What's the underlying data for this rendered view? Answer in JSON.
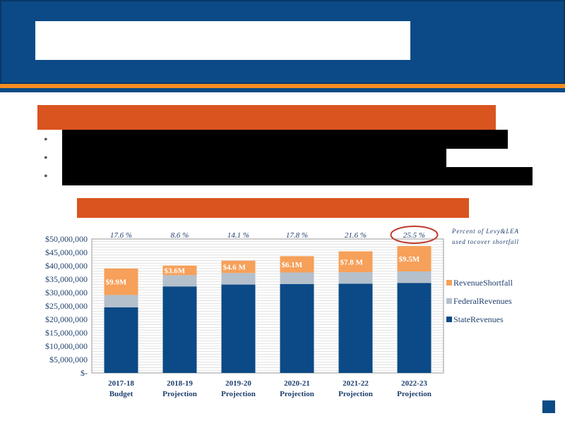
{
  "bullets": [
    "•",
    "•",
    "•"
  ],
  "colors": {
    "header": "#0b4a86",
    "stripe": "#f58c1e",
    "banner": "#d9541e",
    "state": "#0b4a86",
    "federal": "#b4c0cc",
    "shortfall": "#f6a05a",
    "highlight_circle": "#c0392b"
  },
  "chart_data": {
    "type": "bar",
    "stacked": true,
    "categories": [
      [
        "2017-18",
        "Budget"
      ],
      [
        "2018-19",
        "Projection"
      ],
      [
        "2019-20",
        "Projection"
      ],
      [
        "2020-21",
        "Projection"
      ],
      [
        "2021-22",
        "Projection"
      ],
      [
        "2022-23",
        "Projection"
      ]
    ],
    "series": [
      {
        "name": "StateRevenues",
        "values": [
          24500000,
          32300000,
          33000000,
          33200000,
          33300000,
          33600000
        ]
      },
      {
        "name": "FederalRevenues",
        "values": [
          4600000,
          4200000,
          4300000,
          4300000,
          4300000,
          4300000
        ]
      },
      {
        "name": "RevenueShortfall",
        "values": [
          9900000,
          3600000,
          4600000,
          6100000,
          7800000,
          9500000
        ]
      }
    ],
    "bar_labels": [
      "$9.9M",
      "$3.6M",
      "$4.6 M",
      "$6.1M",
      "$7.8 M",
      "$9.5M"
    ],
    "percent_labels": [
      "17.6 %",
      "8.6 %",
      "14.1 %",
      "17.8 %",
      "21.6 %",
      "25.5 %"
    ],
    "highlighted_index": 5,
    "y_ticks": [
      "$-",
      "$5,000,000",
      "$10,000,000",
      "$15,000,000",
      "$20,000,000",
      "$25,000,000",
      "$30,000,000",
      "$35,000,000",
      "$40,000,000",
      "$45,000,000",
      "$50,000,000"
    ],
    "ylim": [
      0,
      50000000
    ],
    "legend": [
      "RevenueShortfall",
      "FederalRevenues",
      "StateRevenues"
    ],
    "legend_position": "right",
    "note": "Percent of Levy&LEA used to cover shortfall",
    "grid": true
  }
}
